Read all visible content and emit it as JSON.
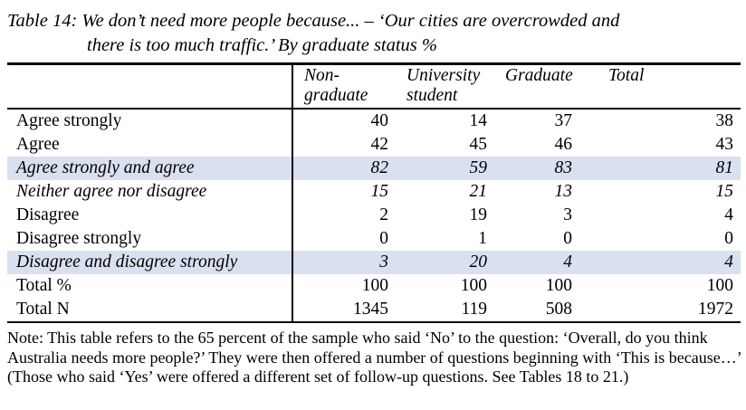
{
  "document": {
    "caption_line1": "Table 14: We don’t need more people because... – ‘Our cities are overcrowded and",
    "caption_line2": "there is too much traffic.’ By graduate status %",
    "note": "Note: This table refers to the 65 percent of the sample who said ‘No’ to the question: ‘Overall, do you think Australia needs more people?’ They were then offered a number of questions beginning with ‘This is because…’ (Those who said ‘Yes’ were offered a different set of follow-up questions. See Tables 18 to 21.)"
  },
  "table": {
    "columns": [
      "Non-graduate",
      "University student",
      "Graduate",
      "Total"
    ],
    "rows": [
      {
        "label": "Agree strongly",
        "values": [
          "40",
          "14",
          "37",
          "38"
        ],
        "style": "plain"
      },
      {
        "label": "Agree",
        "values": [
          "42",
          "45",
          "46",
          "43"
        ],
        "style": "plain"
      },
      {
        "label": "Agree strongly and agree",
        "values": [
          "82",
          "59",
          "83",
          "81"
        ],
        "style": "shaded"
      },
      {
        "label": "Neither agree nor disagree",
        "values": [
          "15",
          "21",
          "13",
          "15"
        ],
        "style": "italic"
      },
      {
        "label": "Disagree",
        "values": [
          "2",
          "19",
          "3",
          "4"
        ],
        "style": "plain"
      },
      {
        "label": "Disagree strongly",
        "values": [
          "0",
          "1",
          "0",
          "0"
        ],
        "style": "plain"
      },
      {
        "label": "Disagree and disagree strongly",
        "values": [
          "3",
          "20",
          "4",
          "4"
        ],
        "style": "shaded"
      },
      {
        "label": "Total %",
        "values": [
          "100",
          "100",
          "100",
          "100"
        ],
        "style": "plain"
      },
      {
        "label": "Total N",
        "values": [
          "1345",
          "119",
          "508",
          "1972"
        ],
        "style": "plain"
      }
    ]
  },
  "colors": {
    "row_shading": "#D9E1F0",
    "rule": "#000000"
  }
}
